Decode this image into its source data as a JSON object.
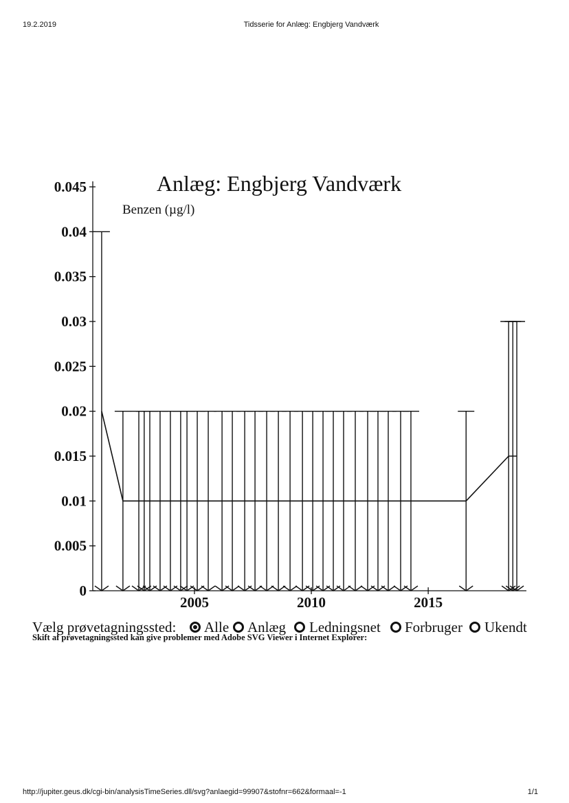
{
  "page": {
    "date": "19.2.2019",
    "header_title": "Tidsserie for Anlæg: Engbjerg Vandværk",
    "footer_url": "http://jupiter.geus.dk/cgi-bin/analysisTimeSeries.dll/svg?anlaegid=99907&stofnr=662&formaal=-1",
    "page_number": "1/1"
  },
  "chart_data": {
    "type": "line",
    "title": "Anlæg: Engbjerg Vandværk",
    "y_label": "Benzen (µg/l)",
    "x": [
      2001.03,
      2001.94,
      2002.62,
      2002.85,
      2003.09,
      2003.53,
      2003.97,
      2004.41,
      2004.68,
      2005.12,
      2005.59,
      2006.18,
      2006.62,
      2007.15,
      2007.59,
      2008.09,
      2008.59,
      2009.09,
      2009.62,
      2010.06,
      2010.5,
      2010.94,
      2011.38,
      2011.88,
      2012.41,
      2012.85,
      2013.29,
      2013.82,
      2014.26,
      2016.62,
      2018.44,
      2018.62,
      2018.79
    ],
    "values": [
      0.02,
      0.01,
      0.01,
      0.01,
      0.01,
      0.01,
      0.01,
      0.01,
      0.01,
      0.01,
      0.01,
      0.01,
      0.01,
      0.01,
      0.01,
      0.01,
      0.01,
      0.01,
      0.01,
      0.01,
      0.01,
      0.01,
      0.01,
      0.01,
      0.01,
      0.01,
      0.01,
      0.01,
      0.01,
      0.01,
      0.015,
      0.015,
      0.015
    ],
    "limits": [
      0.04,
      0.02,
      0.02,
      0.02,
      0.02,
      0.02,
      0.02,
      0.02,
      0.02,
      0.02,
      0.02,
      0.02,
      0.02,
      0.02,
      0.02,
      0.02,
      0.02,
      0.02,
      0.02,
      0.02,
      0.02,
      0.02,
      0.02,
      0.02,
      0.02,
      0.02,
      0.02,
      0.02,
      0.02,
      0.02,
      0.03,
      0.03,
      0.03
    ],
    "color": "#111111",
    "xlim": [
      2000.65,
      2019.2
    ],
    "xticks": [
      2005,
      2010,
      2015
    ],
    "ylim": [
      0,
      0.045
    ],
    "yticks": [
      0,
      0.005,
      0.01,
      0.015,
      0.02,
      0.025,
      0.03,
      0.035,
      0.04,
      0.045
    ]
  },
  "selector": {
    "label": "Vælg prøvetagningssted:",
    "options": [
      "Alle",
      "Anlæg",
      "Ledningsnet",
      "Forbruger",
      "Ukendt"
    ],
    "selected": 0
  },
  "note": "Skift af prøvetagningssted kan give problemer med Adobe SVG Viewer i Internet Explorer:"
}
